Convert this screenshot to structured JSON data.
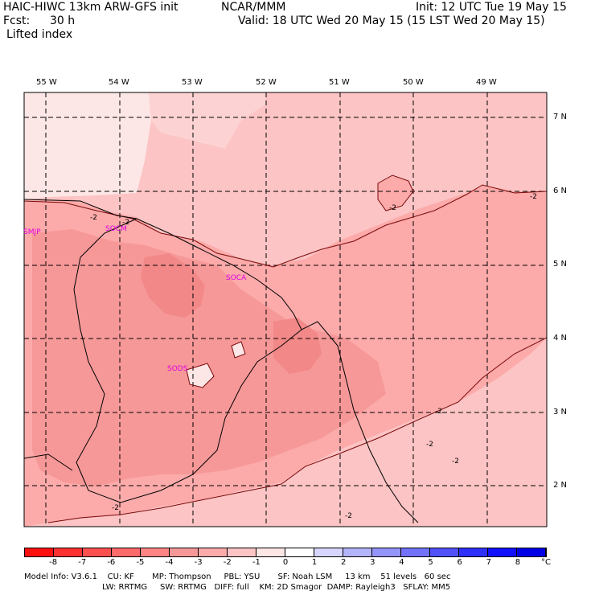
{
  "header": {
    "model": "HAIC-HIWC 13km ARW-GFS init",
    "center": "NCAR/MMM",
    "init": "Init: 12 UTC Tue 19 May 15",
    "fcst_label": "Fcst:",
    "fcst_value": "30 h",
    "valid": "Valid: 18 UTC Wed 20 May 15 (15 LST Wed 20 May 15)",
    "field": "Lifted index"
  },
  "map": {
    "lon_labels": [
      "55 W",
      "54 W",
      "53 W",
      "52 W",
      "51 W",
      "50 W",
      "49 W"
    ],
    "lat_labels": [
      "7 N",
      "6 N",
      "5 N",
      "4 N",
      "3 N",
      "2 N"
    ],
    "stations": [
      "SMJP",
      "SOCM",
      "SOCA",
      "SODS"
    ],
    "contour_labels": [
      "-2",
      "-2",
      "-2",
      "-2",
      "-2",
      "-2",
      "-2",
      "-2",
      "-2"
    ]
  },
  "colorbar": {
    "labels": [
      "-8",
      "-7",
      "-6",
      "-5",
      "-4",
      "-3",
      "-2",
      "-1",
      "0",
      "1",
      "2",
      "3",
      "4",
      "5",
      "6",
      "7",
      "8"
    ],
    "unit": "°C",
    "colors": [
      "#ff1010",
      "#ff3030",
      "#ff5050",
      "#ff6a6a",
      "#ff8585",
      "#f79898",
      "#fcaaaa",
      "#fcc4c4",
      "#fde6e6",
      "#ffffff",
      "#d6d6ff",
      "#b4b4fb",
      "#9494fb",
      "#7272fb",
      "#5252fb",
      "#3030fb",
      "#1010fb",
      "#0000e6"
    ]
  },
  "model_info": {
    "line1": "Model Info: V3.6.1    CU: KF       MP: Thompson     PBL: YSU       SF: Noah LSM     13 km    51 levels   60 sec",
    "line2": "LW: RRTMG     SW: RRTMG   DIFF: full    KM: 2D Smagor  DAMP: Rayleigh3   SFLAY: MM5"
  }
}
